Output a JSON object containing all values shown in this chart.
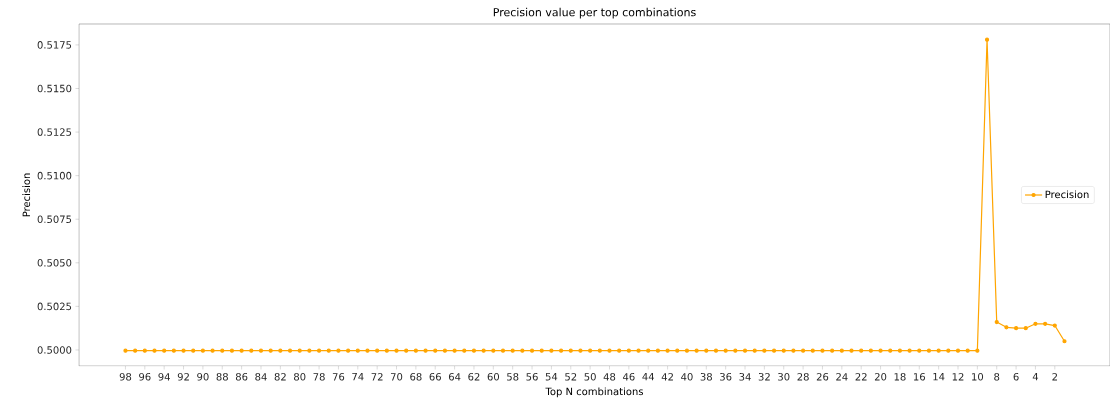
{
  "chart_data": {
    "type": "line",
    "title": "Precision value per top combinations",
    "xlabel": "Top N combinations",
    "ylabel": "Precision",
    "x": [
      98,
      97,
      96,
      95,
      94,
      93,
      92,
      91,
      90,
      89,
      88,
      87,
      86,
      85,
      84,
      83,
      82,
      81,
      80,
      79,
      78,
      77,
      76,
      75,
      74,
      73,
      72,
      71,
      70,
      69,
      68,
      67,
      66,
      65,
      64,
      63,
      62,
      61,
      60,
      59,
      58,
      57,
      56,
      55,
      54,
      53,
      52,
      51,
      50,
      49,
      48,
      47,
      46,
      45,
      44,
      43,
      42,
      41,
      40,
      39,
      38,
      37,
      36,
      35,
      34,
      33,
      32,
      31,
      30,
      29,
      28,
      27,
      26,
      25,
      24,
      23,
      22,
      21,
      20,
      19,
      18,
      17,
      16,
      15,
      14,
      13,
      12,
      11,
      10,
      9,
      8,
      7,
      6,
      5,
      4,
      3,
      2,
      1
    ],
    "series": [
      {
        "name": "Precision",
        "color": "#ffa500",
        "values": [
          0.49996,
          0.49996,
          0.49996,
          0.49996,
          0.49996,
          0.49996,
          0.49996,
          0.49996,
          0.49996,
          0.49996,
          0.49996,
          0.49996,
          0.49996,
          0.49996,
          0.49996,
          0.49996,
          0.49996,
          0.49996,
          0.49996,
          0.49996,
          0.49996,
          0.49996,
          0.49996,
          0.49996,
          0.49996,
          0.49996,
          0.49996,
          0.49996,
          0.49996,
          0.49996,
          0.49996,
          0.49996,
          0.49996,
          0.49996,
          0.49996,
          0.49996,
          0.49996,
          0.49996,
          0.49996,
          0.49996,
          0.49996,
          0.49996,
          0.49996,
          0.49996,
          0.49996,
          0.49996,
          0.49996,
          0.49996,
          0.49996,
          0.49996,
          0.49996,
          0.49996,
          0.49996,
          0.49996,
          0.49996,
          0.49996,
          0.49996,
          0.49996,
          0.49996,
          0.49996,
          0.49996,
          0.49996,
          0.49996,
          0.49996,
          0.49996,
          0.49996,
          0.49996,
          0.49996,
          0.49996,
          0.49996,
          0.49996,
          0.49996,
          0.49996,
          0.49996,
          0.49996,
          0.49996,
          0.49996,
          0.49996,
          0.49996,
          0.49996,
          0.49996,
          0.49996,
          0.49996,
          0.49996,
          0.49996,
          0.49996,
          0.49996,
          0.49996,
          0.49996,
          0.5178,
          0.5016,
          0.5013,
          0.50125,
          0.50125,
          0.5015,
          0.5015,
          0.5014,
          0.5005
        ]
      }
    ],
    "xlim": [
      102.8,
      -3.7
    ],
    "ylim": [
      0.49908,
      0.5187
    ],
    "xticks": [
      98,
      96,
      94,
      92,
      90,
      88,
      86,
      84,
      82,
      80,
      78,
      76,
      74,
      72,
      70,
      68,
      66,
      64,
      62,
      60,
      58,
      56,
      54,
      52,
      50,
      48,
      46,
      44,
      42,
      40,
      38,
      36,
      34,
      32,
      30,
      28,
      26,
      24,
      22,
      20,
      18,
      16,
      14,
      12,
      10,
      8,
      6,
      4,
      2
    ],
    "yticks": [
      {
        "value": 0.5,
        "label": "0.5000"
      },
      {
        "value": 0.5025,
        "label": "0.5025"
      },
      {
        "value": 0.505,
        "label": "0.5050"
      },
      {
        "value": 0.5075,
        "label": "0.5075"
      },
      {
        "value": 0.51,
        "label": "0.5100"
      },
      {
        "value": 0.5125,
        "label": "0.5125"
      },
      {
        "value": 0.515,
        "label": "0.5150"
      },
      {
        "value": 0.5175,
        "label": "0.5175"
      }
    ],
    "grid": false,
    "legend": "right",
    "marker": "circle",
    "line_style": "solid"
  }
}
